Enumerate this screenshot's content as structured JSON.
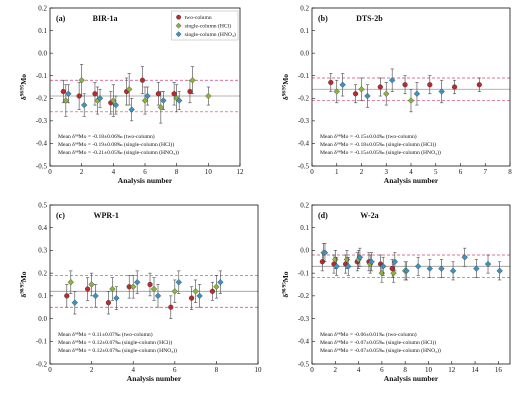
{
  "chart_data": [
    {
      "panel_id": "(a)",
      "title": "BIR-1a",
      "type": "scatter",
      "xlabel": "Analysis number",
      "ylabel": "δ98/95Mo",
      "xlim": [
        0,
        12
      ],
      "ylim": [
        -0.5,
        0.2
      ],
      "xticks": [
        "0",
        "2",
        "4",
        "6",
        "8",
        "10",
        "12"
      ],
      "yticks": [
        "-0.5",
        "-0.4",
        "-0.3",
        "-0.2",
        "-0.1",
        "0.0",
        "0.1",
        "0.2"
      ],
      "mean_line": -0.19,
      "band": [
        -0.26,
        -0.12
      ],
      "legend": {
        "position": "top-right",
        "entries": [
          "two-column",
          "single-column (HCl)",
          "single-column (HNO₃)"
        ]
      },
      "annotations": [
        "Mean δ⁹⁸Mo = -0.18±0.06‰ (two-column)",
        "Mean δ⁹⁸Mo = -0.19±0.08‰ (single-column (HCl))",
        "Mean δ⁹⁸Mo = -0.21±0.05‰ (single-column (HNO₃))"
      ],
      "series": [
        {
          "name": "two-column",
          "color": "#c0282d",
          "points": [
            [
              1,
              -0.17,
              0.05
            ],
            [
              2,
              -0.19,
              0.06
            ],
            [
              3,
              -0.18,
              0.05
            ],
            [
              4,
              -0.22,
              0.05
            ],
            [
              5,
              -0.17,
              0.06
            ],
            [
              6,
              -0.12,
              0.06
            ],
            [
              7,
              -0.18,
              0.05
            ],
            [
              8,
              -0.18,
              0.05
            ],
            [
              9,
              -0.17,
              0.05
            ]
          ]
        },
        {
          "name": "single-column (HCl)",
          "color": "#8db33c",
          "points": [
            [
              1,
              -0.21,
              0.07
            ],
            [
              2,
              -0.12,
              0.07
            ],
            [
              3,
              -0.21,
              0.06
            ],
            [
              4,
              -0.21,
              0.07
            ],
            [
              5,
              -0.16,
              0.07
            ],
            [
              6,
              -0.21,
              0.06
            ],
            [
              7,
              -0.24,
              0.07
            ],
            [
              8,
              -0.2,
              0.06
            ],
            [
              9,
              -0.12,
              0.06
            ],
            [
              10,
              -0.19,
              0.04
            ]
          ]
        },
        {
          "name": "single-column (HNO₃)",
          "color": "#3a93c4",
          "points": [
            [
              1,
              -0.18,
              0.04
            ],
            [
              2,
              -0.23,
              0.05
            ],
            [
              3,
              -0.2,
              0.04
            ],
            [
              4,
              -0.23,
              0.04
            ],
            [
              5,
              -0.25,
              0.05
            ],
            [
              6,
              -0.19,
              0.04
            ],
            [
              7,
              -0.21,
              0.04
            ],
            [
              8,
              -0.21,
              0.04
            ]
          ]
        }
      ]
    },
    {
      "panel_id": "(b)",
      "title": "DTS-2b",
      "type": "scatter",
      "xlabel": "Analysis number",
      "ylabel": "δ98/95Mo",
      "xlim": [
        0,
        8
      ],
      "ylim": [
        -0.5,
        0.2
      ],
      "xticks": [
        "0",
        "1",
        "2",
        "3",
        "4",
        "5",
        "6",
        "7",
        "8"
      ],
      "yticks": [
        "-0.5",
        "-0.4",
        "-0.3",
        "-0.2",
        "-0.1",
        "0.0",
        "0.1",
        "0.2"
      ],
      "mean_line": -0.16,
      "band": [
        -0.21,
        -0.11
      ],
      "annotations": [
        "Mean δ⁹⁸Mo = -0.15±0.04‰ (two-column)",
        "Mean δ⁹⁸Mo = -0.18±0.05‰ (single-column (HCl))",
        "Mean δ⁹⁸Mo = -0.15±0.05‰ (single-column (HNO₃))"
      ],
      "series": [
        {
          "name": "two-column",
          "color": "#c0282d",
          "points": [
            [
              1,
              -0.13,
              0.04
            ],
            [
              2,
              -0.18,
              0.04
            ],
            [
              3,
              -0.15,
              0.04
            ],
            [
              4,
              -0.14,
              0.04
            ],
            [
              5,
              -0.14,
              0.04
            ],
            [
              6,
              -0.15,
              0.03
            ],
            [
              7,
              -0.14,
              0.03
            ]
          ]
        },
        {
          "name": "single-column (HCl)",
          "color": "#8db33c",
          "points": [
            [
              1,
              -0.17,
              0.05
            ],
            [
              2,
              -0.16,
              0.05
            ],
            [
              3,
              -0.18,
              0.05
            ],
            [
              4,
              -0.21,
              0.05
            ]
          ]
        },
        {
          "name": "single-column (HNO₃)",
          "color": "#3a93c4",
          "points": [
            [
              1,
              -0.14,
              0.05
            ],
            [
              2,
              -0.19,
              0.05
            ],
            [
              3,
              -0.12,
              0.05
            ],
            [
              4,
              -0.18,
              0.05
            ],
            [
              5,
              -0.17,
              0.05
            ]
          ]
        }
      ]
    },
    {
      "panel_id": "(c)",
      "title": "WPR-1",
      "type": "scatter",
      "xlabel": "Analysis number",
      "ylabel": "δ98/95Mo",
      "xlim": [
        0,
        10
      ],
      "ylim": [
        -0.2,
        0.5
      ],
      "xticks": [
        "0",
        "2",
        "4",
        "6",
        "8",
        "10"
      ],
      "yticks": [
        "-0.2",
        "-0.1",
        "0.0",
        "0.1",
        "0.2",
        "0.3",
        "0.4",
        "0.5"
      ],
      "mean_line": 0.12,
      "band": [
        0.05,
        0.19
      ],
      "annotations": [
        "Mean δ⁹⁸Mo = 0.11±0.07‰ (two-column)",
        "Mean δ⁹⁸Mo = 0.12±0.07‰ (single-column (HCl))",
        "Mean δ⁹⁸Mo = 0.12±0.07‰ (single-column (HNO₃))"
      ],
      "series": [
        {
          "name": "two-column",
          "color": "#c0282d",
          "points": [
            [
              1,
              0.1,
              0.05
            ],
            [
              2,
              0.13,
              0.05
            ],
            [
              3,
              0.07,
              0.05
            ],
            [
              4,
              0.14,
              0.05
            ],
            [
              5,
              0.15,
              0.05
            ],
            [
              6,
              0.05,
              0.05
            ],
            [
              7,
              0.09,
              0.05
            ],
            [
              8,
              0.12,
              0.04
            ]
          ]
        },
        {
          "name": "single-column (HCl)",
          "color": "#8db33c",
          "points": [
            [
              1,
              0.16,
              0.05
            ],
            [
              2,
              0.15,
              0.05
            ],
            [
              3,
              0.13,
              0.05
            ],
            [
              4,
              0.14,
              0.05
            ],
            [
              5,
              0.13,
              0.05
            ],
            [
              6,
              0.12,
              0.05
            ],
            [
              7,
              0.12,
              0.05
            ],
            [
              8,
              0.14,
              0.05
            ]
          ]
        },
        {
          "name": "single-column (HNO₃)",
          "color": "#3a93c4",
          "points": [
            [
              1,
              0.07,
              0.05
            ],
            [
              2,
              0.1,
              0.05
            ],
            [
              3,
              0.09,
              0.05
            ],
            [
              4,
              0.16,
              0.05
            ],
            [
              5,
              0.1,
              0.05
            ],
            [
              6,
              0.16,
              0.05
            ],
            [
              7,
              0.1,
              0.05
            ],
            [
              8,
              0.16,
              0.05
            ]
          ]
        }
      ]
    },
    {
      "panel_id": "(d)",
      "title": "W-2a",
      "type": "scatter",
      "xlabel": "Analysis number",
      "ylabel": "δ98/95Mo",
      "xlim": [
        0,
        17
      ],
      "ylim": [
        -0.5,
        0.2
      ],
      "xticks": [
        "0",
        "2",
        "4",
        "6",
        "8",
        "10",
        "12",
        "14",
        "16"
      ],
      "yticks": [
        "-0.5",
        "-0.4",
        "-0.3",
        "-0.2",
        "-0.1",
        "0.0",
        "0.1",
        "0.2"
      ],
      "mean_line": -0.07,
      "band": [
        -0.12,
        -0.02
      ],
      "annotations": [
        "Mean δ⁹⁸Mo = -0.06±0.01‰ (two-column)",
        "Mean δ⁹⁸Mo = -0.07±0.05‰ (single-column (HCl))",
        "Mean δ⁹⁸Mo = -0.07±0.05‰ (single-column (HNO₃))"
      ],
      "series": [
        {
          "name": "two-column",
          "color": "#c0282d",
          "points": [
            [
              1,
              -0.05,
              0.04
            ],
            [
              2,
              -0.06,
              0.04
            ],
            [
              3,
              -0.06,
              0.04
            ],
            [
              4,
              -0.05,
              0.04
            ],
            [
              5,
              -0.05,
              0.04
            ],
            [
              6,
              -0.06,
              0.04
            ],
            [
              7,
              -0.08,
              0.04
            ]
          ]
        },
        {
          "name": "single-column (HCl)",
          "color": "#8db33c",
          "points": [
            [
              1,
              -0.01,
              0.04
            ],
            [
              2,
              -0.04,
              0.04
            ],
            [
              3,
              -0.04,
              0.04
            ],
            [
              4,
              -0.04,
              0.04
            ],
            [
              5,
              -0.06,
              0.04
            ],
            [
              6,
              -0.1,
              0.04
            ],
            [
              7,
              -0.1,
              0.04
            ],
            [
              8,
              -0.09,
              0.04
            ]
          ]
        },
        {
          "name": "single-column (HNO₃)",
          "color": "#3a93c4",
          "points": [
            [
              1,
              -0.01,
              0.04
            ],
            [
              2,
              -0.07,
              0.04
            ],
            [
              3,
              -0.07,
              0.04
            ],
            [
              4,
              -0.03,
              0.04
            ],
            [
              5,
              -0.05,
              0.04
            ],
            [
              6,
              -0.07,
              0.04
            ],
            [
              7,
              -0.05,
              0.04
            ],
            [
              8,
              -0.09,
              0.04
            ],
            [
              9,
              -0.07,
              0.04
            ],
            [
              10,
              -0.08,
              0.04
            ],
            [
              11,
              -0.08,
              0.04
            ],
            [
              12,
              -0.09,
              0.04
            ],
            [
              13,
              -0.03,
              0.04
            ],
            [
              14,
              -0.08,
              0.04
            ],
            [
              15,
              -0.06,
              0.04
            ],
            [
              16,
              -0.09,
              0.04
            ]
          ]
        }
      ]
    }
  ]
}
